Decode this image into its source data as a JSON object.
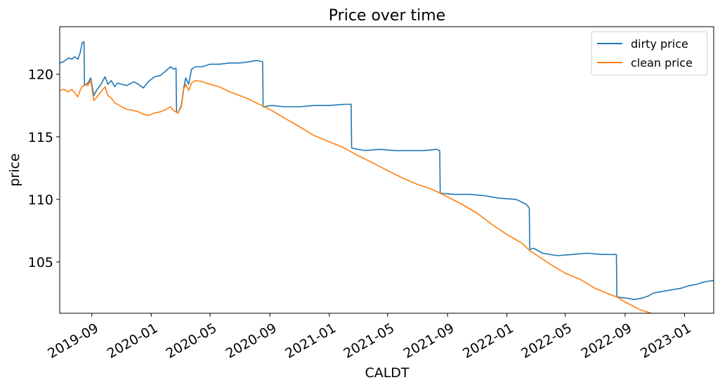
{
  "chart_data": {
    "type": "line",
    "title": "Price over time",
    "xlabel": "CALDT",
    "ylabel": "price",
    "x_range": [
      "2019-06-27",
      "2023-03-02"
    ],
    "ylim": [
      100.9,
      123.8
    ],
    "grid": false,
    "legend_position": "top-right",
    "x_ticks": [
      "2019-09-01",
      "2020-01-01",
      "2020-05-01",
      "2020-09-01",
      "2021-01-01",
      "2021-05-01",
      "2021-09-01",
      "2022-01-01",
      "2022-05-01",
      "2022-09-01",
      "2023-01-01"
    ],
    "x_tick_labels": [
      "2019-09",
      "2020-01",
      "2020-05",
      "2020-09",
      "2021-01",
      "2021-05",
      "2021-09",
      "2022-01",
      "2022-05",
      "2022-09",
      "2023-01"
    ],
    "y_ticks": [
      105,
      110,
      115,
      120
    ],
    "y_tick_labels": [
      "105",
      "110",
      "115",
      "120"
    ],
    "series": [
      {
        "name": "dirty price",
        "color": "#1f77b4",
        "points": [
          [
            "2019-06-27",
            120.9
          ],
          [
            "2019-07-05",
            121.0
          ],
          [
            "2019-07-15",
            121.3
          ],
          [
            "2019-07-22",
            121.2
          ],
          [
            "2019-07-28",
            121.4
          ],
          [
            "2019-08-03",
            121.2
          ],
          [
            "2019-08-08",
            121.7
          ],
          [
            "2019-08-12",
            122.5
          ],
          [
            "2019-08-16",
            122.6
          ],
          [
            "2019-08-17",
            119.1
          ],
          [
            "2019-08-24",
            119.3
          ],
          [
            "2019-08-30",
            119.7
          ],
          [
            "2019-09-05",
            118.3
          ],
          [
            "2019-09-12",
            118.8
          ],
          [
            "2019-09-20",
            119.2
          ],
          [
            "2019-09-28",
            119.8
          ],
          [
            "2019-10-04",
            119.2
          ],
          [
            "2019-10-11",
            119.5
          ],
          [
            "2019-10-18",
            119.0
          ],
          [
            "2019-10-24",
            119.3
          ],
          [
            "2019-11-01",
            119.2
          ],
          [
            "2019-11-12",
            119.1
          ],
          [
            "2019-11-26",
            119.4
          ],
          [
            "2019-12-06",
            119.2
          ],
          [
            "2019-12-16",
            118.9
          ],
          [
            "2019-12-26",
            119.4
          ],
          [
            "2020-01-08",
            119.8
          ],
          [
            "2020-01-20",
            119.9
          ],
          [
            "2020-02-01",
            120.3
          ],
          [
            "2020-02-10",
            120.6
          ],
          [
            "2020-02-16",
            120.4
          ],
          [
            "2020-02-21",
            120.5
          ],
          [
            "2020-02-22",
            117.0
          ],
          [
            "2020-02-25",
            116.9
          ],
          [
            "2020-03-03",
            117.5
          ],
          [
            "2020-03-08",
            118.9
          ],
          [
            "2020-03-12",
            119.7
          ],
          [
            "2020-03-18",
            119.2
          ],
          [
            "2020-03-24",
            120.4
          ],
          [
            "2020-04-01",
            120.6
          ],
          [
            "2020-04-15",
            120.6
          ],
          [
            "2020-05-01",
            120.8
          ],
          [
            "2020-05-20",
            120.8
          ],
          [
            "2020-06-10",
            120.9
          ],
          [
            "2020-07-01",
            120.9
          ],
          [
            "2020-07-20",
            121.0
          ],
          [
            "2020-08-05",
            121.1
          ],
          [
            "2020-08-17",
            121.0
          ],
          [
            "2020-08-18",
            117.4
          ],
          [
            "2020-09-05",
            117.5
          ],
          [
            "2020-10-01",
            117.4
          ],
          [
            "2020-11-01",
            117.4
          ],
          [
            "2020-12-01",
            117.5
          ],
          [
            "2021-01-01",
            117.5
          ],
          [
            "2021-02-01",
            117.6
          ],
          [
            "2021-02-15",
            117.6
          ],
          [
            "2021-02-16",
            114.1
          ],
          [
            "2021-03-15",
            113.9
          ],
          [
            "2021-04-15",
            114.0
          ],
          [
            "2021-05-15",
            113.9
          ],
          [
            "2021-06-15",
            113.9
          ],
          [
            "2021-07-15",
            113.9
          ],
          [
            "2021-08-10",
            114.0
          ],
          [
            "2021-08-16",
            113.9
          ],
          [
            "2021-08-17",
            110.5
          ],
          [
            "2021-09-15",
            110.4
          ],
          [
            "2021-10-15",
            110.4
          ],
          [
            "2021-11-15",
            110.3
          ],
          [
            "2021-12-15",
            110.1
          ],
          [
            "2022-01-20",
            110.0
          ],
          [
            "2022-02-10",
            109.6
          ],
          [
            "2022-02-16",
            109.3
          ],
          [
            "2022-02-17",
            106.0
          ],
          [
            "2022-02-25",
            106.1
          ],
          [
            "2022-03-15",
            105.7
          ],
          [
            "2022-04-15",
            105.5
          ],
          [
            "2022-05-15",
            105.6
          ],
          [
            "2022-06-15",
            105.7
          ],
          [
            "2022-07-15",
            105.6
          ],
          [
            "2022-08-14",
            105.6
          ],
          [
            "2022-08-15",
            102.2
          ],
          [
            "2022-09-05",
            102.1
          ],
          [
            "2022-09-20",
            102.0
          ],
          [
            "2022-10-05",
            102.1
          ],
          [
            "2022-10-20",
            102.3
          ],
          [
            "2022-10-28",
            102.5
          ],
          [
            "2022-11-10",
            102.6
          ],
          [
            "2022-11-25",
            102.7
          ],
          [
            "2022-12-10",
            102.8
          ],
          [
            "2022-12-25",
            102.9
          ],
          [
            "2023-01-10",
            103.1
          ],
          [
            "2023-01-25",
            103.2
          ],
          [
            "2023-02-10",
            103.4
          ],
          [
            "2023-02-25",
            103.5
          ],
          [
            "2023-03-02",
            103.5
          ]
        ]
      },
      {
        "name": "clean price",
        "color": "#ff7f0e",
        "points": [
          [
            "2019-06-27",
            118.7
          ],
          [
            "2019-07-05",
            118.8
          ],
          [
            "2019-07-15",
            118.6
          ],
          [
            "2019-07-22",
            118.8
          ],
          [
            "2019-07-28",
            118.5
          ],
          [
            "2019-08-03",
            118.2
          ],
          [
            "2019-08-08",
            118.7
          ],
          [
            "2019-08-12",
            119.0
          ],
          [
            "2019-08-18",
            119.2
          ],
          [
            "2019-08-24",
            119.1
          ],
          [
            "2019-08-30",
            119.5
          ],
          [
            "2019-09-05",
            117.9
          ],
          [
            "2019-09-12",
            118.2
          ],
          [
            "2019-09-20",
            118.6
          ],
          [
            "2019-09-28",
            119.0
          ],
          [
            "2019-10-04",
            118.3
          ],
          [
            "2019-10-11",
            118.1
          ],
          [
            "2019-10-18",
            117.7
          ],
          [
            "2019-10-24",
            117.6
          ],
          [
            "2019-11-01",
            117.4
          ],
          [
            "2019-11-12",
            117.2
          ],
          [
            "2019-11-26",
            117.1
          ],
          [
            "2019-12-06",
            117.0
          ],
          [
            "2019-12-16",
            116.8
          ],
          [
            "2019-12-26",
            116.7
          ],
          [
            "2020-01-08",
            116.9
          ],
          [
            "2020-01-20",
            117.0
          ],
          [
            "2020-02-01",
            117.2
          ],
          [
            "2020-02-10",
            117.4
          ],
          [
            "2020-02-16",
            117.1
          ],
          [
            "2020-02-25",
            116.9
          ],
          [
            "2020-03-03",
            117.4
          ],
          [
            "2020-03-08",
            118.8
          ],
          [
            "2020-03-12",
            119.2
          ],
          [
            "2020-03-18",
            118.7
          ],
          [
            "2020-03-24",
            119.3
          ],
          [
            "2020-04-01",
            119.5
          ],
          [
            "2020-04-15",
            119.4
          ],
          [
            "2020-05-01",
            119.2
          ],
          [
            "2020-05-20",
            119.0
          ],
          [
            "2020-06-10",
            118.6
          ],
          [
            "2020-07-01",
            118.3
          ],
          [
            "2020-07-20",
            118.0
          ],
          [
            "2020-08-05",
            117.7
          ],
          [
            "2020-08-20",
            117.4
          ],
          [
            "2020-09-05",
            117.1
          ],
          [
            "2020-10-01",
            116.5
          ],
          [
            "2020-11-01",
            115.8
          ],
          [
            "2020-12-01",
            115.1
          ],
          [
            "2021-01-01",
            114.6
          ],
          [
            "2021-02-01",
            114.1
          ],
          [
            "2021-03-01",
            113.5
          ],
          [
            "2021-04-01",
            112.9
          ],
          [
            "2021-05-01",
            112.3
          ],
          [
            "2021-06-01",
            111.7
          ],
          [
            "2021-07-01",
            111.2
          ],
          [
            "2021-08-01",
            110.8
          ],
          [
            "2021-09-01",
            110.2
          ],
          [
            "2021-10-01",
            109.6
          ],
          [
            "2021-11-01",
            108.9
          ],
          [
            "2021-12-01",
            108.0
          ],
          [
            "2022-01-01",
            107.2
          ],
          [
            "2022-02-01",
            106.5
          ],
          [
            "2022-02-17",
            105.9
          ],
          [
            "2022-03-01",
            105.6
          ],
          [
            "2022-04-01",
            104.8
          ],
          [
            "2022-05-01",
            104.1
          ],
          [
            "2022-06-01",
            103.6
          ],
          [
            "2022-07-01",
            102.9
          ],
          [
            "2022-08-01",
            102.4
          ],
          [
            "2022-08-15",
            102.2
          ],
          [
            "2022-09-01",
            101.8
          ],
          [
            "2022-10-01",
            101.2
          ],
          [
            "2022-10-25",
            100.9
          ]
        ]
      }
    ]
  }
}
